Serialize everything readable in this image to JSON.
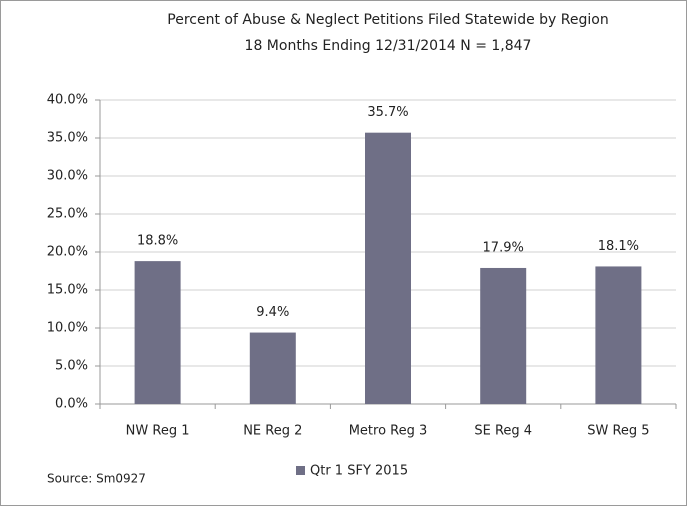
{
  "chart_data": {
    "type": "bar",
    "title": "Percent of Abuse & Neglect Petitions Filed Statewide by Region",
    "subtitle": "18 Months Ending 12/31/2014  N = 1,847",
    "categories": [
      "NW Reg 1",
      "NE Reg 2",
      "Metro Reg 3",
      "SE Reg 4",
      "SW Reg 5"
    ],
    "series": [
      {
        "name": "Qtr 1 SFY 2015",
        "color": "#6f6f86",
        "values": [
          18.8,
          9.4,
          35.7,
          17.9,
          18.1
        ],
        "value_labels": [
          "18.8%",
          "9.4%",
          "35.7%",
          "17.9%",
          "18.1%"
        ]
      }
    ],
    "ylim": [
      0,
      40
    ],
    "yticks": [
      {
        "value": 0,
        "label": "0.0%"
      },
      {
        "value": 5,
        "label": "5.0%"
      },
      {
        "value": 10,
        "label": "10.0%"
      },
      {
        "value": 15,
        "label": "15.0%"
      },
      {
        "value": 20,
        "label": "20.0%"
      },
      {
        "value": 25,
        "label": "25.0%"
      },
      {
        "value": 30,
        "label": "30.0%"
      },
      {
        "value": 35,
        "label": "35.0%"
      },
      {
        "value": 40,
        "label": "40.0%"
      }
    ],
    "grid": true,
    "legend": "bottom",
    "source": "Source: Sm0927"
  }
}
